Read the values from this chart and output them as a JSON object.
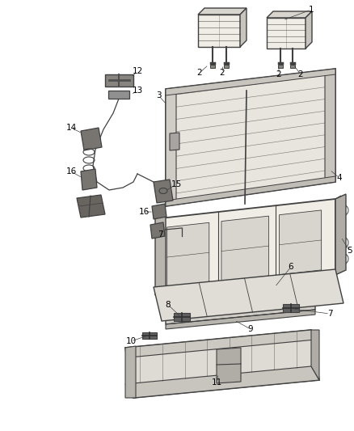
{
  "background_color": "#ffffff",
  "line_color": "#404040",
  "label_color": "#000000",
  "figsize": [
    4.38,
    5.33
  ],
  "dpi": 100,
  "seat_back_fill": "#e8e4de",
  "seat_cushion_fill": "#dedad4",
  "frame_fill": "#d0ccc6",
  "hardware_fill": "#888480",
  "light_fill": "#f0ece6"
}
